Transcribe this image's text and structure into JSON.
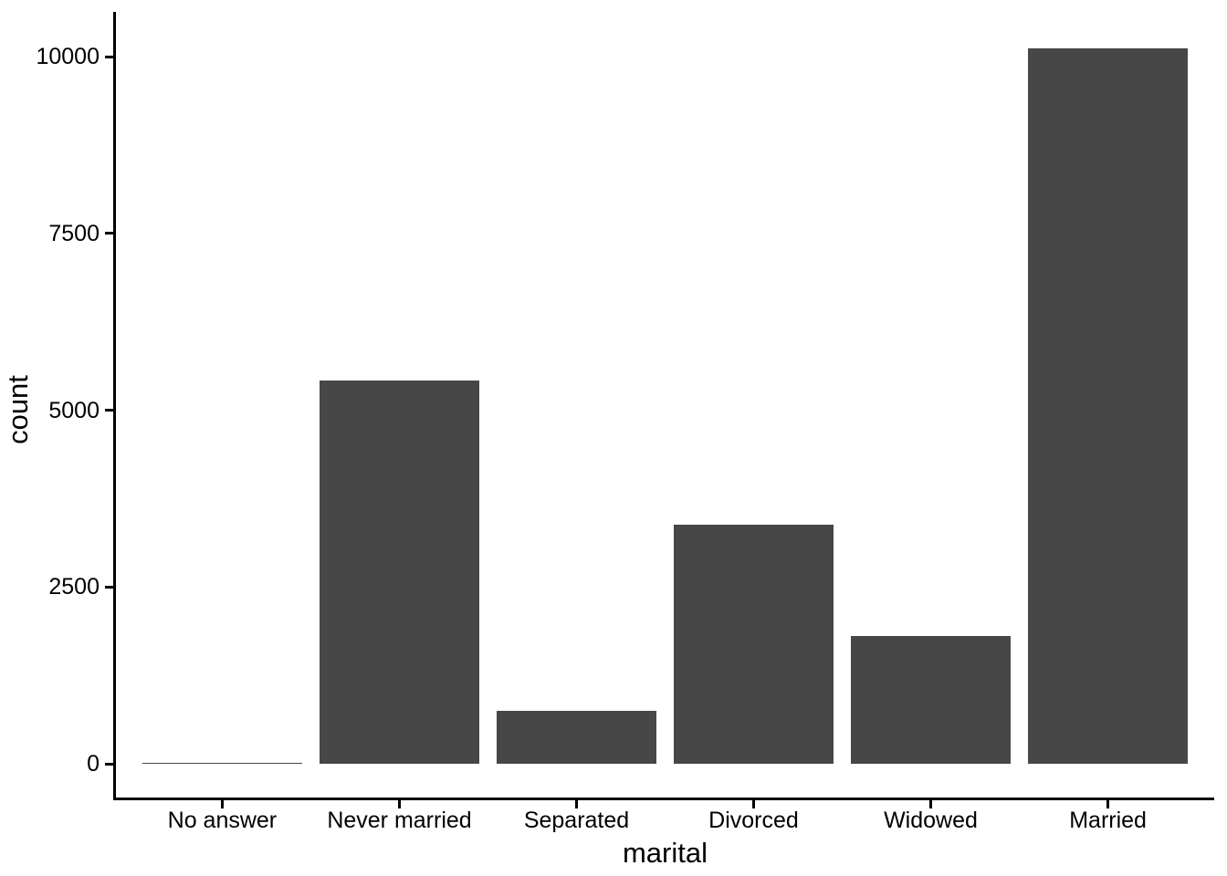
{
  "chart_data": {
    "type": "bar",
    "title": "",
    "xlabel": "marital",
    "ylabel": "count",
    "categories": [
      "No answer",
      "Never married",
      "Separated",
      "Divorced",
      "Widowed",
      "Married"
    ],
    "values": [
      17,
      5416,
      743,
      3383,
      1807,
      10117
    ],
    "y_ticks": [
      0,
      2500,
      5000,
      7500,
      10000
    ],
    "ylim": [
      -506,
      10623
    ],
    "grid": false,
    "legend": null,
    "bar_color": "#474747",
    "axis_color": "#000000",
    "text_color": "#000000",
    "background_color": "#ffffff"
  }
}
